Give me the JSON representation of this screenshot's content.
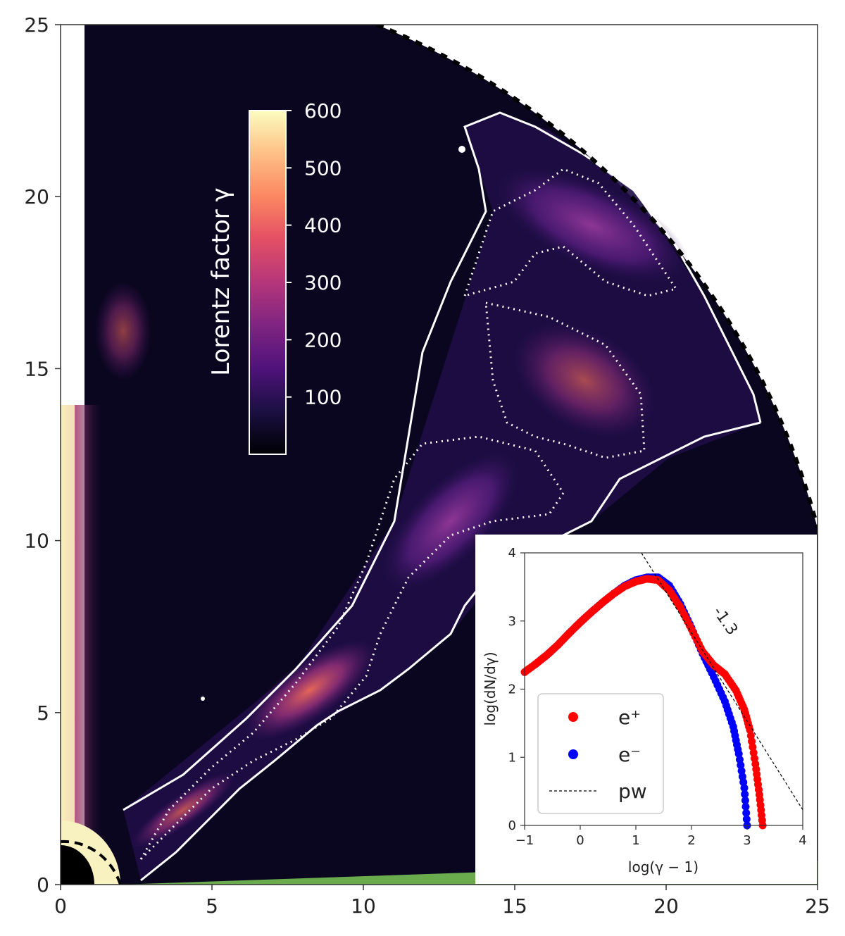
{
  "chart_data": [
    {
      "type": "heatmap",
      "title": "",
      "xlabel": "",
      "ylabel": "",
      "xlim": [
        0,
        25
      ],
      "ylim": [
        0,
        25
      ],
      "xticks": [
        "0",
        "5",
        "10",
        "15",
        "20",
        "25"
      ],
      "yticks": [
        "0",
        "5",
        "10",
        "15",
        "20",
        "25"
      ],
      "colorbar": {
        "label": "Lorentz factor γ",
        "range": [
          0,
          600
        ],
        "ticks": [
          "100",
          "200",
          "300",
          "400",
          "500",
          "600"
        ],
        "colormap": "magma"
      },
      "colors": {
        "background": "#0b0620",
        "contour": "#ffffff",
        "equatorial_region": "#6aab4e",
        "polar_axis": "#f8f2c0"
      }
    },
    {
      "type": "scatter",
      "xlabel": "log(γ − 1)",
      "ylabel": "log(dN/dγ)",
      "xlim": [
        -1,
        4
      ],
      "ylim": [
        0,
        4
      ],
      "xticks": [
        "−1",
        "0",
        "1",
        "2",
        "3",
        "4"
      ],
      "yticks": [
        "0",
        "1",
        "2",
        "3",
        "4"
      ],
      "legend": {
        "placement": "lower-left",
        "entries": [
          "e⁺",
          "e⁻",
          "pw"
        ]
      },
      "annotation": "-1.3",
      "series": [
        {
          "name": "e⁺",
          "color": "#ff0000",
          "points": [
            [
              -1.0,
              2.25
            ],
            [
              -0.8,
              2.37
            ],
            [
              -0.6,
              2.5
            ],
            [
              -0.4,
              2.65
            ],
            [
              -0.2,
              2.82
            ],
            [
              0.0,
              2.98
            ],
            [
              0.2,
              3.13
            ],
            [
              0.4,
              3.27
            ],
            [
              0.6,
              3.4
            ],
            [
              0.8,
              3.51
            ],
            [
              1.0,
              3.58
            ],
            [
              1.2,
              3.62
            ],
            [
              1.4,
              3.6
            ],
            [
              1.6,
              3.45
            ],
            [
              1.8,
              3.2
            ],
            [
              2.0,
              2.88
            ],
            [
              2.2,
              2.55
            ],
            [
              2.4,
              2.35
            ],
            [
              2.6,
              2.22
            ],
            [
              2.8,
              1.98
            ],
            [
              2.95,
              1.7
            ],
            [
              3.05,
              1.4
            ],
            [
              3.15,
              0.9
            ],
            [
              3.22,
              0.45
            ],
            [
              3.28,
              0.0
            ]
          ]
        },
        {
          "name": "e⁻",
          "color": "#0000ff",
          "points": [
            [
              -0.8,
              2.37
            ],
            [
              -0.6,
              2.5
            ],
            [
              -0.4,
              2.65
            ],
            [
              -0.2,
              2.82
            ],
            [
              0.0,
              2.98
            ],
            [
              0.2,
              3.13
            ],
            [
              0.4,
              3.27
            ],
            [
              0.6,
              3.4
            ],
            [
              0.8,
              3.52
            ],
            [
              1.0,
              3.6
            ],
            [
              1.2,
              3.64
            ],
            [
              1.4,
              3.64
            ],
            [
              1.6,
              3.52
            ],
            [
              1.8,
              3.25
            ],
            [
              2.0,
              2.9
            ],
            [
              2.2,
              2.52
            ],
            [
              2.4,
              2.18
            ],
            [
              2.6,
              1.82
            ],
            [
              2.75,
              1.45
            ],
            [
              2.85,
              1.05
            ],
            [
              2.95,
              0.55
            ],
            [
              3.0,
              0.0
            ]
          ]
        },
        {
          "name": "pw",
          "color": "#000000",
          "line": [
            [
              1.1,
              4.0
            ],
            [
              4.0,
              0.23
            ]
          ]
        }
      ]
    }
  ]
}
